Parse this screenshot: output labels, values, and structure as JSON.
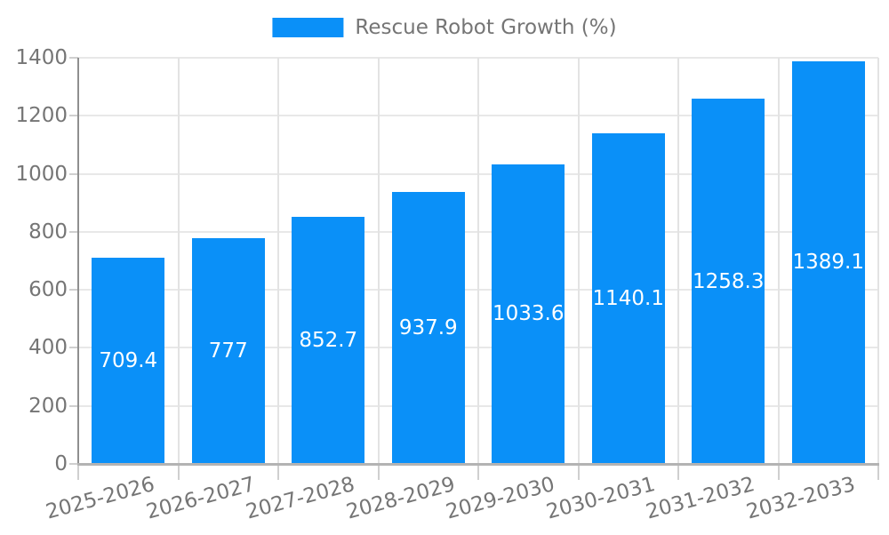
{
  "legend": {
    "label": "Rescue Robot Growth (%)",
    "swatch_color": "#0a90f8"
  },
  "chart_data": {
    "type": "bar",
    "title": "",
    "xlabel": "",
    "ylabel": "",
    "categories": [
      "2025-2026",
      "2026-2027",
      "2027-2028",
      "2028-2029",
      "2029-2030",
      "2030-2031",
      "2031-2032",
      "2032-2033"
    ],
    "values": [
      709.4,
      777,
      852.7,
      937.9,
      1033.6,
      1140.1,
      1258.3,
      1389.1
    ],
    "value_labels": [
      "709.4",
      "777",
      "852.7",
      "937.9",
      "1033.6",
      "1140.1",
      "1258.3",
      "1389.1"
    ],
    "yticks": [
      0,
      200,
      400,
      600,
      800,
      1000,
      1200,
      1400
    ],
    "ylim": [
      0,
      1400
    ],
    "grid": true,
    "legend_position": "top-center",
    "x_label_rotation_deg": -15,
    "colors": {
      "bar": "#0a90f8",
      "bar_value_text": "#ffffff",
      "axis_text": "#757575",
      "y_gridline": "#e8e8e8",
      "x_gridline": "#e3e3e3",
      "y_axis_line": "#8f8f8f",
      "x_axis_line": "#b3b3b3",
      "tick": "#cfcfcf"
    }
  }
}
